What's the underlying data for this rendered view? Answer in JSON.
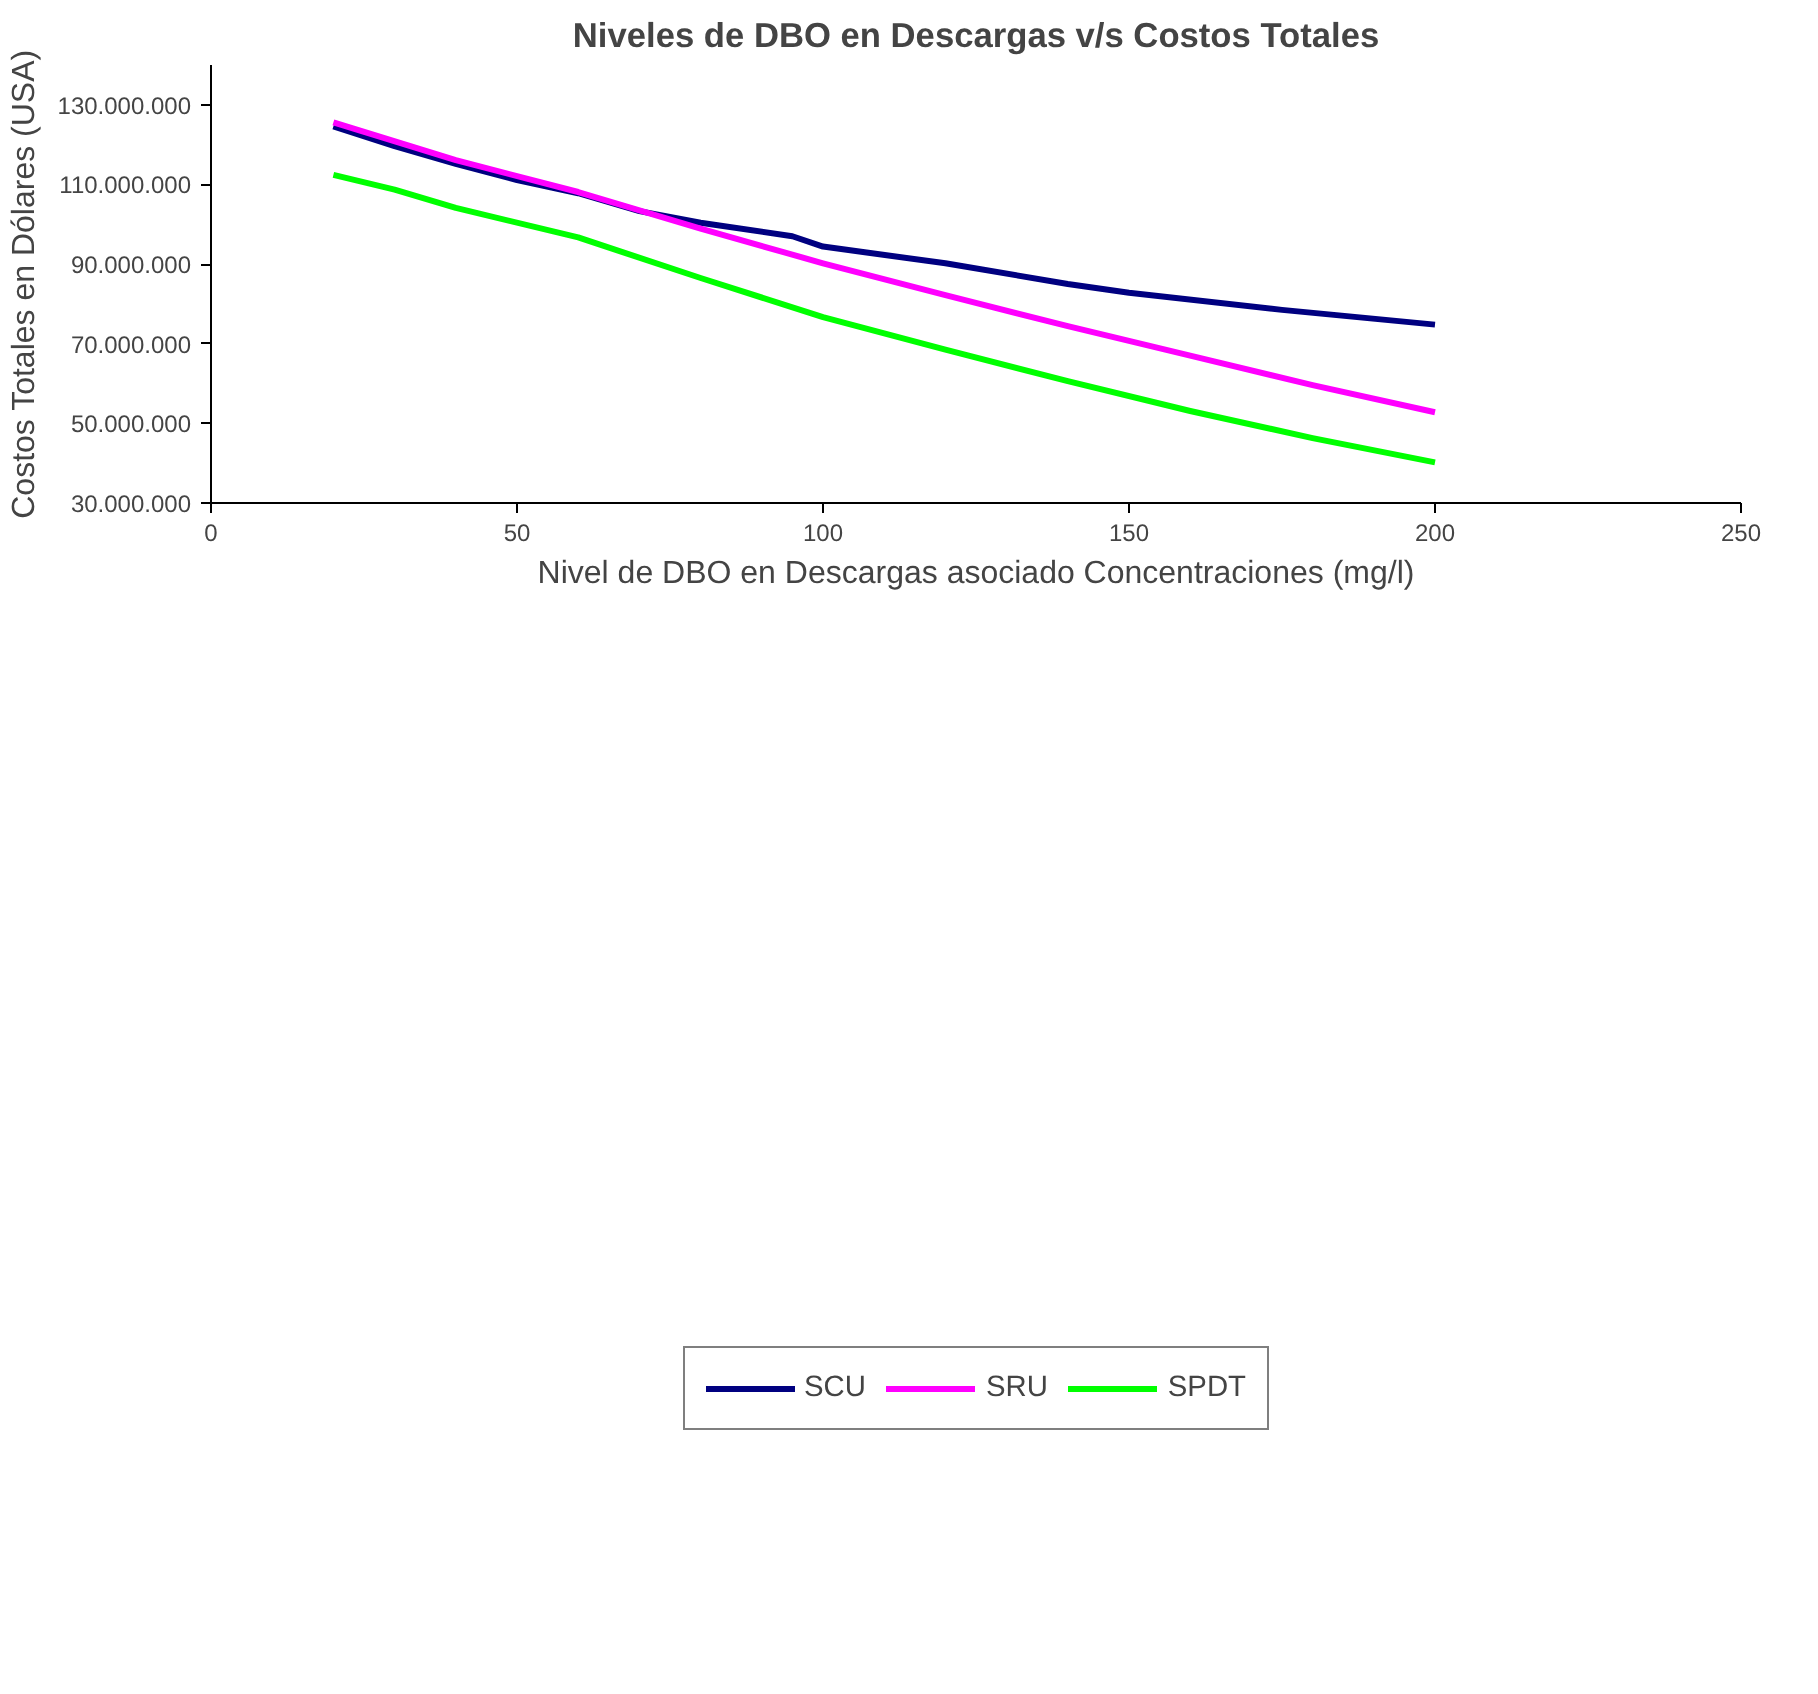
{
  "chart_data": {
    "type": "line",
    "title": "Niveles de DBO en Descargas v/s Costos Totales",
    "xlabel": "Nivel de DBO en Descargas asociado Concentraciones (mg/l)",
    "ylabel": "Costos Totales en Dólares (USA)",
    "series": [
      {
        "name": "SCU",
        "color": "#000080",
        "x": [
          20,
          30,
          40,
          50,
          60,
          70,
          80,
          95,
          100,
          120,
          140,
          150,
          175,
          200
        ],
        "values": [
          124600000,
          119600000,
          115200000,
          111100000,
          107800000,
          103300000,
          100400000,
          97000000,
          94400000,
          90200000,
          85000000,
          82800000,
          78500000,
          74800000
        ]
      },
      {
        "name": "SRU",
        "color": "#ff00ff",
        "x": [
          20,
          40,
          60,
          80,
          100,
          120,
          140,
          160,
          180,
          200
        ],
        "values": [
          125600000,
          116100000,
          108100000,
          98900000,
          90200000,
          82200000,
          74400000,
          67000000,
          59600000,
          52800000
        ]
      },
      {
        "name": "SPDT",
        "color": "#00ff00",
        "x": [
          20,
          30,
          40,
          60,
          80,
          100,
          120,
          140,
          160,
          180,
          200
        ],
        "values": [
          112400000,
          108700000,
          104100000,
          96700000,
          86500000,
          76700000,
          68500000,
          60600000,
          53100000,
          46300000,
          40200000
        ]
      }
    ],
    "xlim": [
      0,
      250
    ],
    "xticks": [
      0,
      50,
      100,
      150,
      200,
      250
    ],
    "ylim": [
      30000000,
      140000000
    ],
    "yticks": [
      {
        "value": 30000000,
        "label": "30.000.000"
      },
      {
        "value": 50000000,
        "label": "50.000.000"
      },
      {
        "value": 70000000,
        "label": "70.000.000"
      },
      {
        "value": 90000000,
        "label": "90.000.000"
      },
      {
        "value": 110000000,
        "label": "110.000.000"
      },
      {
        "value": 130000000,
        "label": "130.000.000"
      }
    ],
    "legend": "bottom",
    "grid": false,
    "marker": "none",
    "line_style": "solid"
  }
}
